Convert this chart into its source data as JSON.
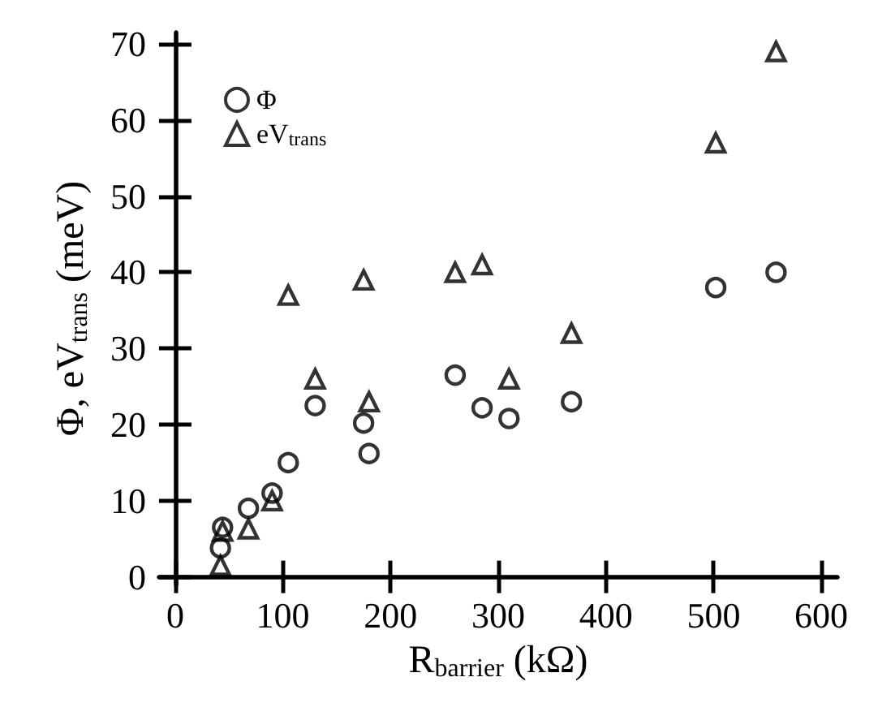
{
  "chart_data": {
    "type": "scatter",
    "xlabel": "R$_{barrier}$ (kΩ)",
    "ylabel": "Φ, eV$_{trans}$ (meV)",
    "xlim": [
      -15,
      615
    ],
    "xticks": [
      0,
      100,
      200,
      300,
      400,
      500,
      600
    ],
    "ylim": [
      -1,
      71.5
    ],
    "yticks": [
      0,
      10,
      20,
      30,
      40,
      50,
      60,
      70
    ],
    "grid": false,
    "legend": "top left",
    "series": [
      {
        "name": "Φ",
        "color": "#000000",
        "marker": "circle",
        "x": [
          42,
          44,
          68,
          90,
          105,
          130,
          175,
          180,
          260,
          285,
          310,
          368,
          502,
          558
        ],
        "values": [
          3.8,
          6.5,
          9,
          11,
          15,
          22.5,
          20.2,
          16.2,
          26.5,
          22.2,
          20.8,
          23,
          38,
          40
        ]
      },
      {
        "name": "eV$_{trans}$",
        "color": "#000000",
        "marker": "triangle",
        "x": [
          42,
          44,
          68,
          90,
          105,
          130,
          175,
          180,
          260,
          285,
          310,
          368,
          502,
          558
        ],
        "values": [
          1.5,
          6,
          6.3,
          10,
          37,
          26,
          39,
          23,
          40,
          41,
          26,
          32,
          57,
          69
        ]
      }
    ]
  }
}
